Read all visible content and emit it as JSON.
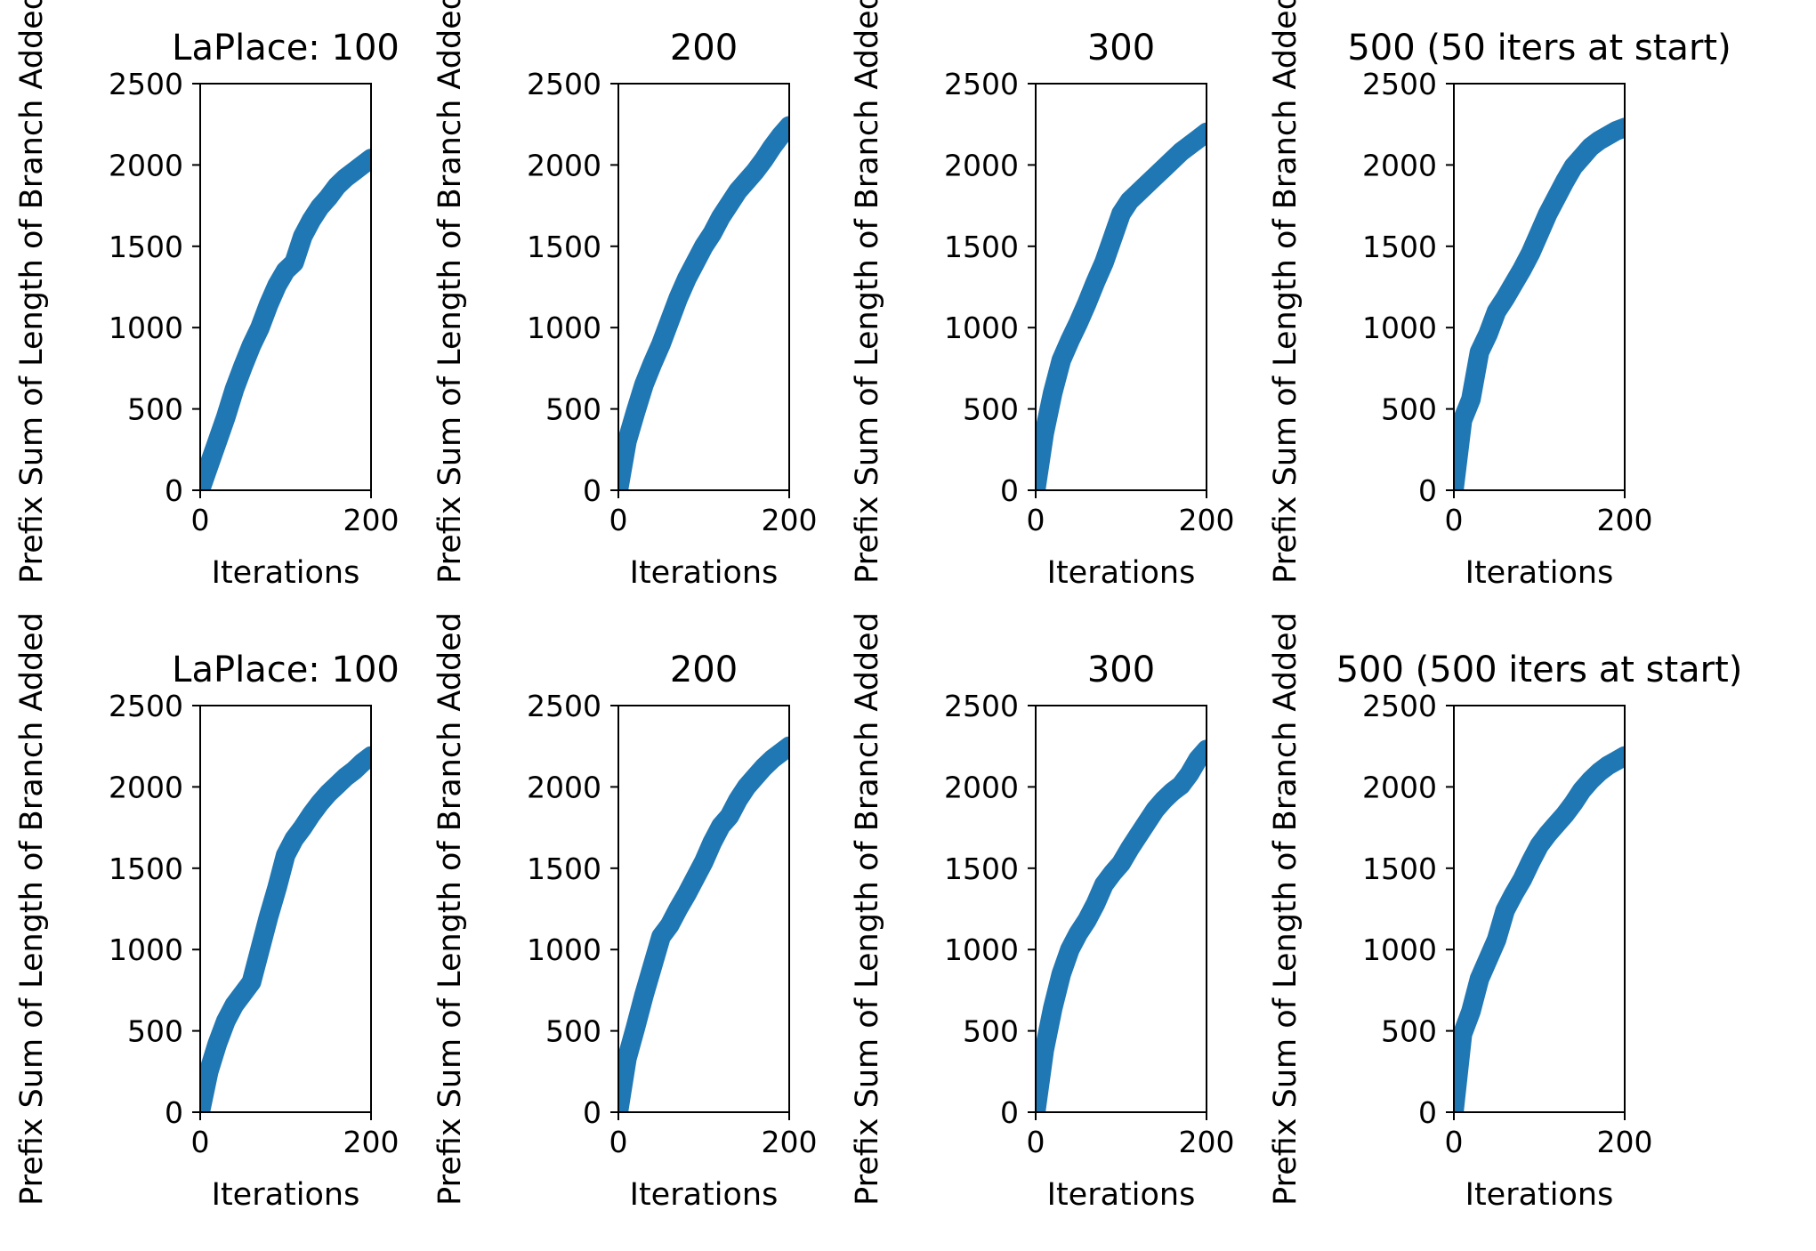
{
  "figure": {
    "rows": 2,
    "cols": 4,
    "series_color": "#1f77b4",
    "axes_color": "#000000"
  },
  "chart_data": [
    {
      "type": "line",
      "title": "LaPlace: 100",
      "xlabel": "Iterations",
      "ylabel": "Prefix Sum of Length of Branch Added",
      "xlim": [
        0,
        200
      ],
      "ylim": [
        0,
        2500
      ],
      "xticks": [
        "0",
        "200"
      ],
      "yticks": [
        "0",
        "500",
        "1000",
        "1500",
        "2000",
        "2500"
      ],
      "grid": false,
      "legend": "none",
      "x": [
        0,
        10,
        20,
        30,
        40,
        50,
        60,
        70,
        80,
        90,
        100,
        110,
        120,
        130,
        140,
        150,
        160,
        170,
        180,
        190,
        200
      ],
      "values": [
        0,
        150,
        300,
        450,
        620,
        760,
        890,
        1000,
        1140,
        1260,
        1350,
        1400,
        1560,
        1660,
        1740,
        1800,
        1870,
        1920,
        1960,
        2000,
        2040
      ]
    },
    {
      "type": "line",
      "title": "200",
      "xlabel": "Iterations",
      "ylabel": "Prefix Sum of Length of Branch Added",
      "xlim": [
        0,
        200
      ],
      "ylim": [
        0,
        2500
      ],
      "xticks": [
        "0",
        "200"
      ],
      "yticks": [
        "0",
        "500",
        "1000",
        "1500",
        "2000",
        "2500"
      ],
      "grid": false,
      "legend": "none",
      "x": [
        0,
        10,
        20,
        30,
        40,
        50,
        60,
        70,
        80,
        90,
        100,
        110,
        120,
        130,
        140,
        150,
        160,
        170,
        180,
        190,
        200
      ],
      "values": [
        0,
        300,
        480,
        650,
        780,
        900,
        1040,
        1180,
        1300,
        1400,
        1500,
        1580,
        1680,
        1760,
        1840,
        1900,
        1960,
        2030,
        2110,
        2180,
        2240
      ]
    },
    {
      "type": "line",
      "title": "300",
      "xlabel": "Iterations",
      "ylabel": "Prefix Sum of Length of Branch Added",
      "xlim": [
        0,
        200
      ],
      "ylim": [
        0,
        2500
      ],
      "xticks": [
        "0",
        "200"
      ],
      "yticks": [
        "0",
        "500",
        "1000",
        "1500",
        "2000",
        "2500"
      ],
      "grid": false,
      "legend": "none",
      "x": [
        0,
        10,
        20,
        30,
        40,
        50,
        60,
        70,
        80,
        90,
        100,
        110,
        120,
        130,
        140,
        150,
        160,
        170,
        180,
        190,
        200
      ],
      "values": [
        0,
        350,
        600,
        800,
        920,
        1030,
        1150,
        1280,
        1400,
        1550,
        1700,
        1780,
        1830,
        1880,
        1930,
        1980,
        2030,
        2080,
        2120,
        2160,
        2200
      ]
    },
    {
      "type": "line",
      "title": "500 (50 iters at start)",
      "xlabel": "Iterations",
      "ylabel": "Prefix Sum of Length of Branch Added",
      "xlim": [
        0,
        200
      ],
      "ylim": [
        0,
        2500
      ],
      "xticks": [
        "0",
        "200"
      ],
      "yticks": [
        "0",
        "500",
        "1000",
        "1500",
        "2000",
        "2500"
      ],
      "grid": false,
      "legend": "none",
      "x": [
        0,
        10,
        20,
        30,
        40,
        50,
        60,
        70,
        80,
        90,
        100,
        110,
        120,
        130,
        140,
        150,
        160,
        170,
        180,
        190,
        200
      ],
      "values": [
        0,
        430,
        560,
        850,
        960,
        1100,
        1180,
        1270,
        1360,
        1460,
        1580,
        1700,
        1800,
        1900,
        1990,
        2050,
        2110,
        2150,
        2180,
        2210,
        2230
      ]
    },
    {
      "type": "line",
      "title": "LaPlace: 100",
      "xlabel": "Iterations",
      "ylabel": "Prefix Sum of Length of Branch Added",
      "xlim": [
        0,
        200
      ],
      "ylim": [
        0,
        2500
      ],
      "xticks": [
        "0",
        "200"
      ],
      "yticks": [
        "0",
        "500",
        "1000",
        "1500",
        "2000",
        "2500"
      ],
      "grid": false,
      "legend": "none",
      "x": [
        0,
        10,
        20,
        30,
        40,
        50,
        60,
        70,
        80,
        90,
        100,
        110,
        120,
        130,
        140,
        150,
        160,
        170,
        180,
        190,
        200
      ],
      "values": [
        0,
        250,
        420,
        560,
        660,
        730,
        800,
        1000,
        1200,
        1380,
        1580,
        1680,
        1750,
        1830,
        1900,
        1960,
        2010,
        2060,
        2100,
        2150,
        2190
      ]
    },
    {
      "type": "line",
      "title": "200",
      "xlabel": "Iterations",
      "ylabel": "Prefix Sum of Length of Branch Added",
      "xlim": [
        0,
        200
      ],
      "ylim": [
        0,
        2500
      ],
      "xticks": [
        "0",
        "200"
      ],
      "yticks": [
        "0",
        "500",
        "1000",
        "1500",
        "2000",
        "2500"
      ],
      "grid": false,
      "legend": "none",
      "x": [
        0,
        10,
        20,
        30,
        40,
        50,
        60,
        70,
        80,
        90,
        100,
        110,
        120,
        130,
        140,
        150,
        160,
        170,
        180,
        190,
        200
      ],
      "values": [
        0,
        330,
        520,
        720,
        900,
        1080,
        1150,
        1250,
        1340,
        1440,
        1540,
        1660,
        1760,
        1820,
        1920,
        2000,
        2060,
        2120,
        2170,
        2210,
        2250
      ]
    },
    {
      "type": "line",
      "title": "300",
      "xlabel": "Iterations",
      "ylabel": "Prefix Sum of Length of Branch Added",
      "xlim": [
        0,
        200
      ],
      "ylim": [
        0,
        2500
      ],
      "xticks": [
        "0",
        "200"
      ],
      "yticks": [
        "0",
        "500",
        "1000",
        "1500",
        "2000",
        "2500"
      ],
      "grid": false,
      "legend": "none",
      "x": [
        0,
        10,
        20,
        30,
        40,
        50,
        60,
        70,
        80,
        90,
        100,
        110,
        120,
        130,
        140,
        150,
        160,
        170,
        180,
        190,
        200
      ],
      "values": [
        0,
        380,
        640,
        850,
        1000,
        1100,
        1180,
        1280,
        1400,
        1470,
        1530,
        1620,
        1700,
        1780,
        1860,
        1920,
        1970,
        2010,
        2080,
        2170,
        2230
      ]
    },
    {
      "type": "line",
      "title": "500 (500 iters at start)",
      "xlabel": "Iterations",
      "ylabel": "Prefix Sum of Length of Branch Added",
      "xlim": [
        0,
        200
      ],
      "ylim": [
        0,
        2500
      ],
      "xticks": [
        "0",
        "200"
      ],
      "yticks": [
        "0",
        "500",
        "1000",
        "1500",
        "2000",
        "2500"
      ],
      "grid": false,
      "legend": "none",
      "x": [
        0,
        10,
        20,
        30,
        40,
        50,
        60,
        70,
        80,
        90,
        100,
        110,
        120,
        130,
        140,
        150,
        160,
        170,
        180,
        190,
        200
      ],
      "values": [
        0,
        480,
        620,
        820,
        940,
        1060,
        1240,
        1340,
        1430,
        1540,
        1640,
        1710,
        1770,
        1830,
        1900,
        1980,
        2040,
        2090,
        2130,
        2160,
        2190
      ]
    }
  ]
}
